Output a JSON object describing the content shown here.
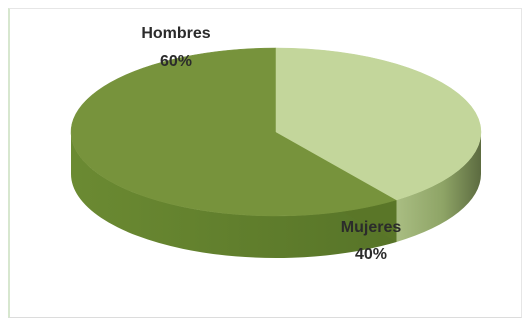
{
  "chart_data": {
    "type": "pie",
    "title": "",
    "categories": [
      "Hombres",
      "Mujeres"
    ],
    "values": [
      60,
      40
    ],
    "data_labels": [
      "60%",
      "40%"
    ],
    "colors": [
      "#77933c",
      "#c3d69b"
    ],
    "side_colors": [
      "#5e7a2c",
      "#8fa469"
    ],
    "style": "3d",
    "legend": "none"
  }
}
